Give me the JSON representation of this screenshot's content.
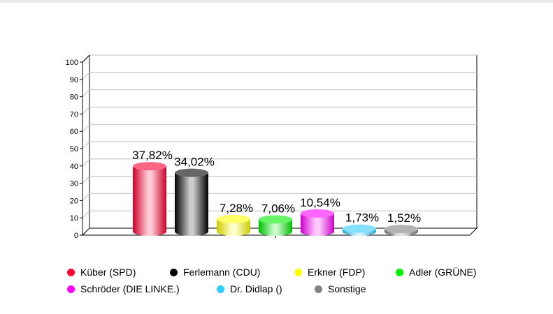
{
  "chart_data": {
    "type": "bar",
    "title": "",
    "xlabel": "",
    "ylabel": "",
    "ylim": [
      0,
      100
    ],
    "yticks": [
      "0",
      "10",
      "20",
      "30",
      "40",
      "50",
      "60",
      "70",
      "80",
      "90",
      "100"
    ],
    "grid": true,
    "legend_position": "bottom",
    "categories": [
      "Küber (SPD)",
      "Ferlemann (CDU)",
      "Erkner (FDP)",
      "Adler (GRÜNE)",
      "Schröder (DIE LINKE.)",
      "Dr. Didlap ()",
      "Sonstige"
    ],
    "values": [
      37.82,
      34.02,
      7.28,
      7.06,
      10.54,
      1.73,
      1.52
    ],
    "labels": [
      "37,82%",
      "34,02%",
      "7,28%",
      "7,06%",
      "10,54%",
      "1,73%",
      "1,52%"
    ],
    "colors": [
      "#ff0033",
      "#000000",
      "#ffff00",
      "#00ee00",
      "#ff00ff",
      "#33ccff",
      "#808080"
    ]
  }
}
